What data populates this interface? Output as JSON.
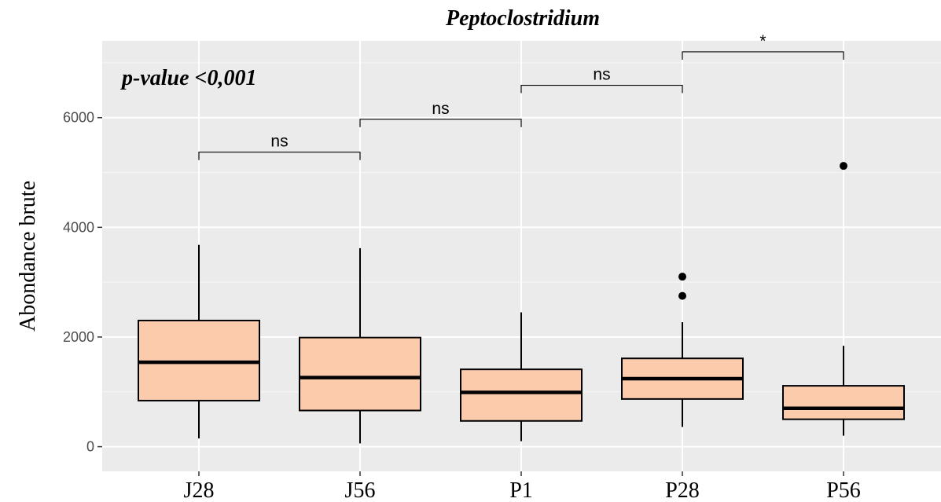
{
  "chart_data": {
    "type": "boxplot",
    "title": "Peptoclostridium",
    "annotation": "p-value <0,001",
    "ylabel": "Abondance brute",
    "xlabel": "",
    "ylim": [
      -450,
      7400
    ],
    "yticks": [
      0,
      2000,
      4000,
      6000
    ],
    "categories": [
      "J28",
      "J56",
      "P1",
      "P28",
      "P56"
    ],
    "fill_color": "#fccbab",
    "panel_color": "#ebebeb",
    "grid": true,
    "boxes": [
      {
        "category": "J28",
        "whisker_low": 150,
        "q1": 840,
        "median": 1540,
        "q3": 2300,
        "whisker_high": 3680,
        "outliers": []
      },
      {
        "category": "J56",
        "whisker_low": 60,
        "q1": 660,
        "median": 1260,
        "q3": 1990,
        "whisker_high": 3620,
        "outliers": []
      },
      {
        "category": "P1",
        "whisker_low": 100,
        "q1": 470,
        "median": 990,
        "q3": 1410,
        "whisker_high": 2450,
        "outliers": []
      },
      {
        "category": "P28",
        "whisker_low": 360,
        "q1": 870,
        "median": 1240,
        "q3": 1610,
        "whisker_high": 2270,
        "outliers": [
          2750,
          3100
        ]
      },
      {
        "category": "P56",
        "whisker_low": 200,
        "q1": 500,
        "median": 700,
        "q3": 1110,
        "whisker_high": 1840,
        "outliers": [
          5120
        ]
      }
    ],
    "comparisons": [
      {
        "from": "J28",
        "to": "J56",
        "y": 5370,
        "label": "ns"
      },
      {
        "from": "J56",
        "to": "P1",
        "y": 5970,
        "label": "ns"
      },
      {
        "from": "P1",
        "to": "P28",
        "y": 6590,
        "label": "ns"
      },
      {
        "from": "P28",
        "to": "P56",
        "y": 7200,
        "label": "*"
      }
    ]
  }
}
